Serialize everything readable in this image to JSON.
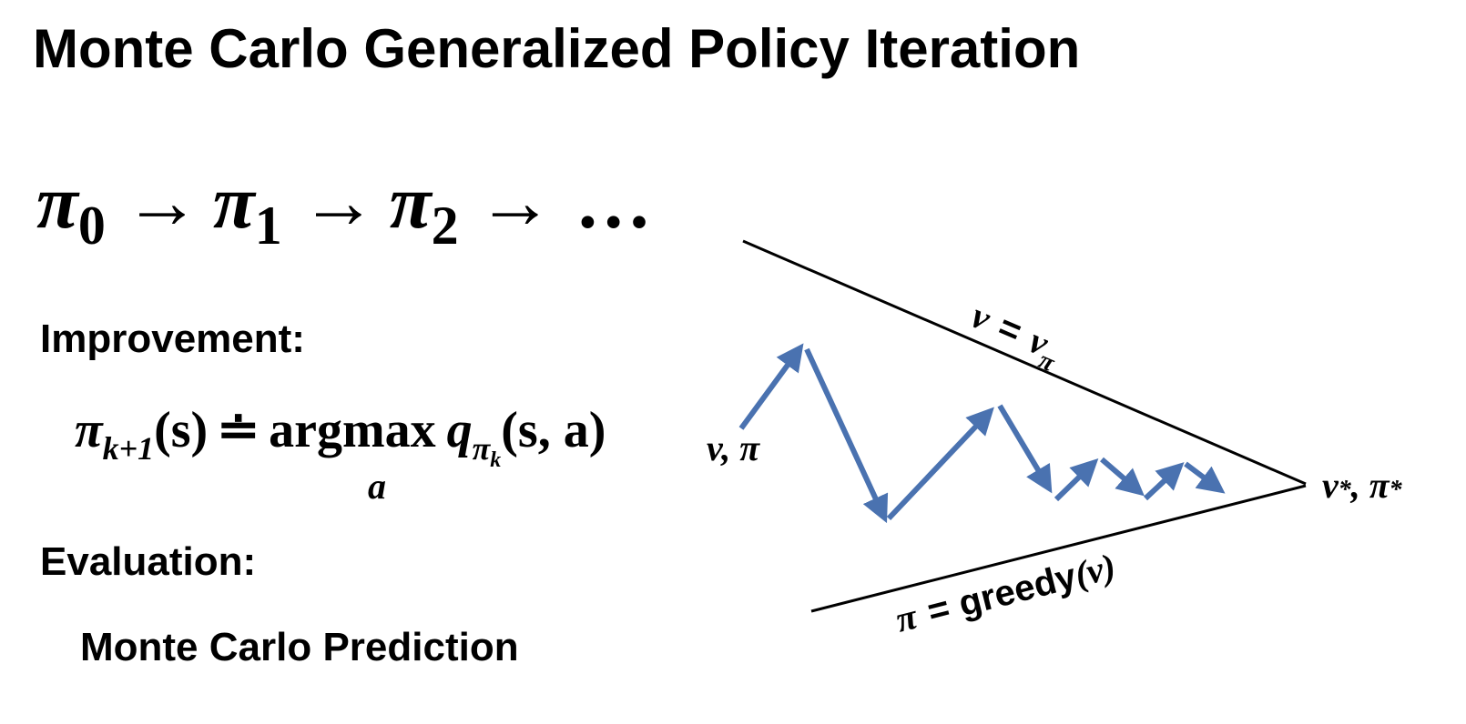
{
  "title": "Monte Carlo Generalized Policy Iteration",
  "sequence": {
    "symbol": "π",
    "subscripts": [
      "0",
      "1",
      "2"
    ],
    "arrow": "→",
    "ellipsis": "…"
  },
  "improvement": {
    "label": "Improvement:",
    "formula": {
      "lhs_symbol": "π",
      "lhs_subscript": "k+1",
      "lhs_arg": "(s)",
      "relation": "≐",
      "operator": "argmax",
      "operator_under": "a",
      "func": "q",
      "func_sub_symbol": "π",
      "func_sub_sub": "k",
      "func_args": "(s, a)"
    }
  },
  "evaluation": {
    "label": "Evaluation:",
    "method": "Monte Carlo Prediction"
  },
  "diagram": {
    "line_color": "#000000",
    "arrow_color": "#4a72b0",
    "upper_line_label": {
      "lhs": "v",
      "eq": "=",
      "rhs": "v",
      "rhs_sub": "π"
    },
    "lower_line_label": {
      "lhs": "π",
      "eq": "=",
      "func": "greedy",
      "arg": "(v)"
    },
    "start_label": "v, π",
    "end_label": {
      "v": "v",
      "star": "*",
      "sep": ", ",
      "pi": "π"
    }
  }
}
